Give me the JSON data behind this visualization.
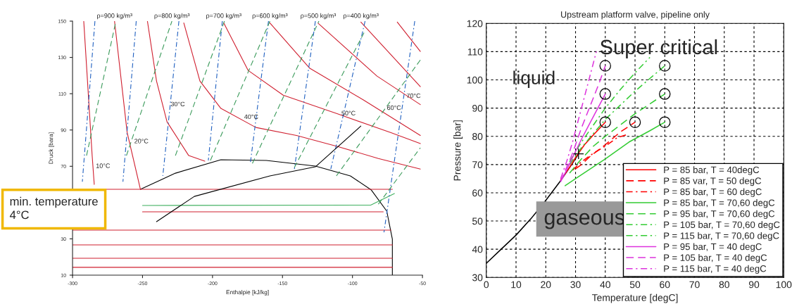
{
  "chart_data": [
    {
      "type": "line",
      "xlabel": "Enthalpie [kJ/kg]",
      "ylabel": "Druck [bara]",
      "xlim": [
        -300,
        -50
      ],
      "ylim": [
        10,
        150
      ],
      "xticks": [
        -300,
        -250,
        -200,
        -150,
        -100,
        -50
      ],
      "yticks": [
        10,
        30,
        {
          "value": 50,
          "label": null
        },
        70,
        90,
        110,
        130,
        150
      ],
      "grid": false,
      "legend": false,
      "series": [
        {
          "color": "#000000",
          "line_style": "solid",
          "x": [
            -251.5,
            -226.5,
            -194,
            -161.5,
            -126.5,
            -101.5,
            -86.5,
            -75.5,
            -71.5,
            -71.5
          ],
          "values": [
            57.3,
            66.2,
            73.6,
            73.2,
            70.1,
            64.7,
            56.9,
            45.3,
            29.8,
            10
          ]
        },
        {
          "color": "#d02030",
          "line_style": "solid",
          "x": [
            -300,
            -71.5
          ],
          "values": [
            57.3,
            57.3
          ]
        },
        {
          "color": "#d02030",
          "line_style": "solid",
          "x": [
            -250,
            -78
          ],
          "values": [
            44.9,
            44.9
          ]
        },
        {
          "color": "#d02030",
          "line_style": "solid",
          "x": [
            -300,
            -72.5
          ],
          "values": [
            34.8,
            34.8
          ]
        },
        {
          "color": "#d02030",
          "line_style": "solid",
          "x": [
            -300,
            -71.5
          ],
          "values": [
            26.7,
            26.7
          ]
        },
        {
          "color": "#d02030",
          "line_style": "solid",
          "x": [
            -300,
            -71.5
          ],
          "values": [
            19.3,
            19.3
          ]
        },
        {
          "color": "#d02030",
          "line_style": "solid",
          "x": [
            -300,
            -71.5
          ],
          "values": [
            14.3,
            14.3
          ]
        },
        {
          "color": "#40b060",
          "line_style": "solid",
          "x": [
            -250,
            -87,
            -70
          ],
          "values": [
            48.4,
            48.6,
            55
          ]
        },
        {
          "color": "#d02030",
          "line_style": "solid",
          "x": [
            -292,
            -286,
            -284.5
          ],
          "values": [
            150,
            76,
            60
          ]
        },
        {
          "color": "#d02030",
          "line_style": "solid",
          "x": [
            -270,
            -261,
            -251.5
          ],
          "values": [
            150,
            88.7,
            57.3
          ]
        },
        {
          "color": "#d02030",
          "line_style": "solid",
          "x": [
            -246.5,
            -240,
            -232.5,
            -217,
            -205.5
          ],
          "values": [
            150,
            117,
            94.5,
            75.9,
            72.8
          ]
        },
        {
          "color": "#d02030",
          "line_style": "solid",
          "x": [
            -220.5,
            -209,
            -194,
            -169,
            -140,
            -111,
            -81.5,
            -51.5
          ],
          "values": [
            149,
            117,
            101.9,
            91.4,
            87,
            81,
            74.3,
            68.5
          ]
        },
        {
          "color": "#d02030",
          "line_style": "solid",
          "x": [
            -192,
            -174.5,
            -149.5,
            -111,
            -72.5,
            -51.5
          ],
          "values": [
            149,
            122.8,
            109.2,
            99,
            88.5,
            82.5
          ]
        },
        {
          "color": "#d02030",
          "line_style": "solid",
          "x": [
            -159,
            -130.5,
            -92,
            -51.5
          ],
          "values": [
            149,
            124,
            106.5,
            87
          ]
        },
        {
          "color": "#d02030",
          "line_style": "solid",
          "x": [
            -124.5,
            -82.5,
            -51.5
          ],
          "values": [
            148.8,
            119.7,
            104
          ]
        },
        {
          "color": "#d02030",
          "line_style": "solid",
          "x": [
            -94,
            -51.5
          ],
          "values": [
            149.5,
            113.9
          ]
        },
        {
          "color": "#d02030",
          "line_style": "solid",
          "x": [
            -68,
            -51.5
          ],
          "values": [
            149.5,
            133.3
          ]
        },
        {
          "color": "#2060c0",
          "line_style": "dashdot",
          "x": [
            -284,
            -293
          ],
          "values": [
            150,
            61.5
          ]
        },
        {
          "color": "#2060c0",
          "line_style": "dashdot",
          "x": [
            -254.5,
            -264
          ],
          "values": [
            150,
            61.5
          ]
        },
        {
          "color": "#2060c0",
          "line_style": "dashdot",
          "x": [
            -224,
            -235.5
          ],
          "values": [
            150,
            64.7
          ]
        },
        {
          "color": "#2060c0",
          "line_style": "dashdot",
          "x": [
            -193,
            -203
          ],
          "values": [
            150,
            73.2
          ]
        },
        {
          "color": "#2060c0",
          "line_style": "dashdot",
          "x": [
            -160,
            -173
          ],
          "values": [
            150,
            71.6
          ]
        },
        {
          "color": "#2060c0",
          "line_style": "dashdot",
          "x": [
            -126.5,
            -141.5
          ],
          "values": [
            150,
            68.5
          ]
        },
        {
          "color": "#2060c0",
          "line_style": "dashdot",
          "x": [
            -91,
            -115.5
          ],
          "values": [
            150,
            68.5
          ]
        },
        {
          "color": "#2060c0",
          "line_style": "dashdot",
          "x": [
            -55.5,
            -77.5
          ],
          "values": [
            150,
            33.6
          ]
        },
        {
          "color": "#3a9a5a",
          "line_style": "dashed",
          "x": [
            -290,
            -269
          ],
          "values": [
            75.9,
            150
          ]
        },
        {
          "color": "#3a9a5a",
          "line_style": "dashed",
          "x": [
            -261.5,
            -229
          ],
          "values": [
            75.9,
            150
          ]
        },
        {
          "color": "#3a9a5a",
          "line_style": "dashed",
          "x": [
            -226.5,
            -191.5
          ],
          "values": [
            75.9,
            150
          ]
        },
        {
          "color": "#3a9a5a",
          "line_style": "dashed",
          "x": [
            -201.5,
            -159
          ],
          "values": [
            73.2,
            150
          ]
        },
        {
          "color": "#3a9a5a",
          "line_style": "dashed",
          "x": [
            -171.5,
            -124
          ],
          "values": [
            71.6,
            150
          ]
        },
        {
          "color": "#3a9a5a",
          "line_style": "dashed",
          "x": [
            -141.5,
            -91.5
          ],
          "values": [
            69.3,
            144
          ]
        },
        {
          "color": "#3a9a5a",
          "line_style": "dashed",
          "x": [
            -111.5,
            -51.5
          ],
          "values": [
            64.7,
            128.6
          ]
        },
        {
          "color": "#3a9a5a",
          "line_style": "dashed",
          "x": [
            -81.5,
            -51.5
          ],
          "values": [
            49.1,
            80.2
          ]
        },
        {
          "color": "#000000",
          "line_style": "solid",
          "x": [
            -240,
            -213,
            -159,
            -126.5,
            -94
          ],
          "values": [
            39.5,
            53.4,
            64.7,
            69.7,
            92.2
          ]
        }
      ],
      "annotations": [
        {
          "text": "ρ=900 kg/m³",
          "x": -270,
          "y": 150
        },
        {
          "text": "ρ=800 kg/m³",
          "x": -229,
          "y": 150
        },
        {
          "text": "ρ=700 kg/m³",
          "x": -192,
          "y": 150
        },
        {
          "text": "ρ=600 kg/m³",
          "x": -159,
          "y": 150
        },
        {
          "text": "ρ=500 kg/m³",
          "x": -124.5,
          "y": 150
        },
        {
          "text": "ρ=400 kg/m³",
          "x": -94,
          "y": 150
        },
        {
          "text": "10°C",
          "x": -285.4,
          "y": 70
        },
        {
          "text": "20°C",
          "x": -258,
          "y": 83.6
        },
        {
          "text": "30°C",
          "x": -232,
          "y": 104
        },
        {
          "text": "40°C",
          "x": -179.5,
          "y": 97
        },
        {
          "text": "50°C",
          "x": -110,
          "y": 99
        },
        {
          "text": "60°C",
          "x": -77.5,
          "y": 102
        },
        {
          "text": "70°C",
          "x": -63.5,
          "y": 108.6
        },
        "min. temperature\n4°C"
      ]
    },
    {
      "type": "line",
      "title": "Upstream platform valve, pipeline only",
      "xlabel": "Temperature [degC]",
      "ylabel": "Pressure [bar]",
      "xlim": [
        0,
        100
      ],
      "ylim": [
        30,
        120
      ],
      "xticks": [
        0,
        10,
        20,
        30,
        40,
        50,
        60,
        70,
        80,
        90,
        100
      ],
      "yticks": [
        30,
        40,
        50,
        60,
        70,
        80,
        90,
        100,
        110,
        120
      ],
      "grid": true,
      "legend": "bottom right",
      "series": [
        {
          "color": "#000000",
          "line_style": "solid",
          "x": [
            0,
            5,
            10,
            15,
            20,
            25,
            29,
            31
          ],
          "values": [
            35,
            40,
            45,
            50.8,
            57.3,
            64.3,
            70.5,
            73.8
          ]
        },
        {
          "type": "scatter",
          "color": "#000000",
          "marker": "cross",
          "x": [
            31
          ],
          "values": [
            73.8
          ]
        },
        {
          "type": "scatter",
          "color": "#000000",
          "marker": "circle",
          "x": [
            40,
            40,
            40,
            50,
            60,
            60,
            60
          ],
          "values": [
            85,
            95,
            105,
            85,
            85,
            95,
            105
          ]
        },
        {
          "name": "P = 85 bar, T = 40degC",
          "color": "#ff0000",
          "line_style": "solid",
          "x": [
            25,
            28,
            30,
            33,
            36,
            40
          ],
          "values": [
            64.5,
            69,
            72.5,
            77,
            80.5,
            85
          ]
        },
        {
          "name": "P = 85 var, T = 50 degC",
          "color": "#ff0000",
          "line_style": "dashed",
          "x": [
            30,
            32,
            35,
            40,
            45,
            50
          ],
          "values": [
            68.5,
            70,
            73,
            77,
            81.5,
            85
          ]
        },
        {
          "name": "P = 85 bar, T = 60 degC",
          "color": "#ff0000",
          "line_style": "dashdot",
          "x": [
            29,
            32,
            36,
            40,
            44,
            47
          ],
          "values": [
            68,
            71,
            74,
            76.5,
            79.5,
            80.5
          ]
        },
        {
          "name": "P = 85 bar, T = 70,60 degC",
          "color": "#33cc33",
          "line_style": "solid",
          "x": [
            26.5,
            30,
            35,
            40,
            48,
            55,
            60
          ],
          "values": [
            62.5,
            65,
            68.5,
            72,
            78,
            82,
            85
          ]
        },
        {
          "name": "P = 95 bar, T = 70,60 degC",
          "color": "#33cc33",
          "line_style": "dashed",
          "x": [
            28,
            32,
            36,
            40,
            45,
            50,
            55,
            60
          ],
          "values": [
            67,
            72,
            76.5,
            80,
            84,
            88,
            91.5,
            95
          ]
        },
        {
          "name": "P = 105 bar, T = 70,60 degC",
          "color": "#33cc33",
          "line_style": "dashdot",
          "x": [
            28,
            32,
            36,
            40,
            45,
            50,
            55,
            60
          ],
          "values": [
            70,
            76,
            81,
            86,
            91,
            96,
            100.5,
            105
          ]
        },
        {
          "name": "P = 115 bar, T = 70,60 degC",
          "color": "#33cc33",
          "line_style": "dashdot",
          "x": [
            28,
            32,
            36,
            40,
            45,
            50,
            55
          ],
          "values": [
            71,
            78,
            84,
            90,
            96.5,
            102.5,
            108
          ]
        },
        {
          "name": "P = 95 bar, T = 40 degC",
          "color": "#dd33dd",
          "line_style": "solid",
          "x": [
            25,
            27,
            29,
            32,
            35,
            38,
            40
          ],
          "values": [
            64,
            68,
            72.5,
            79,
            85,
            91,
            95
          ]
        },
        {
          "name": "P = 105 bar, T = 40 degC",
          "color": "#dd33dd",
          "line_style": "dashed",
          "x": [
            25,
            27,
            29,
            32,
            35,
            38,
            40
          ],
          "values": [
            64,
            69,
            74,
            83,
            91,
            99,
            105
          ]
        },
        {
          "name": "P = 115 bar, T = 40 degC",
          "color": "#dd33dd",
          "line_style": "dashdot",
          "x": [
            25,
            27,
            29,
            31,
            34,
            37
          ],
          "values": [
            65,
            71,
            78,
            86,
            98,
            110
          ]
        }
      ],
      "annotations": [
        "Super critical",
        "liquid",
        "gaseous"
      ]
    }
  ]
}
